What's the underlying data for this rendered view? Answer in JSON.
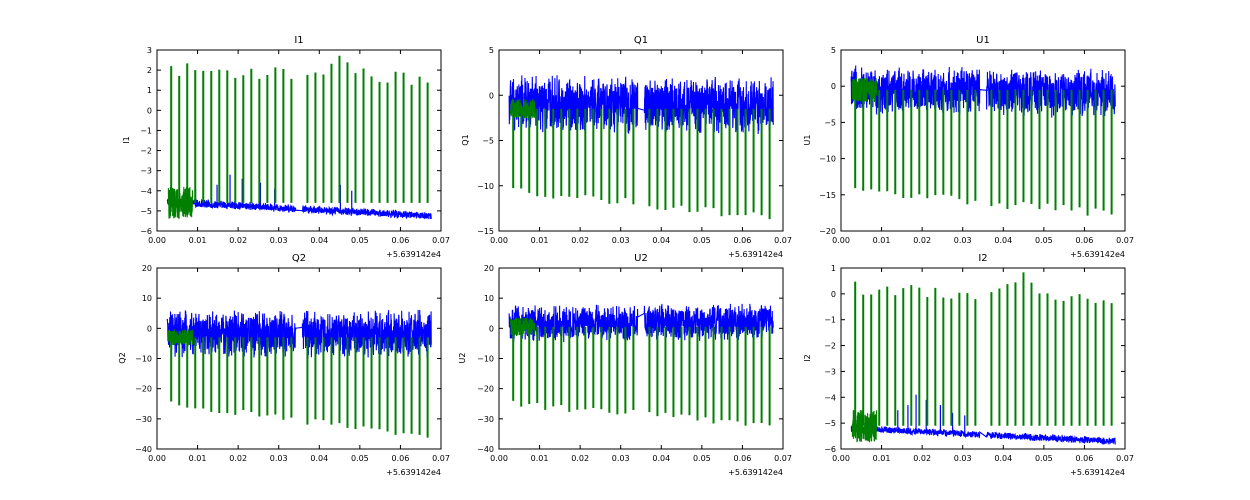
{
  "chart_data": [
    {
      "type": "line",
      "title": "I1",
      "ylabel": "I1",
      "xlim": [
        0.0,
        0.07
      ],
      "ylim": [
        -6,
        3
      ],
      "xticks": [
        "0.00",
        "0.01",
        "0.02",
        "0.03",
        "0.04",
        "0.05",
        "0.06",
        "0.07"
      ],
      "yticks": [
        "3",
        "2",
        "1",
        "0",
        "−1",
        "−2",
        "−3",
        "−4",
        "−5",
        "−6"
      ],
      "x_offset": "+5.639142e4",
      "series": [
        {
          "name": "blue",
          "color": "#0000ff",
          "kind": "band",
          "segments": [
            [
              0.0025,
              0.0342
            ],
            [
              0.0358,
              0.0676
            ]
          ],
          "center_start": -4.55,
          "center_end": -5.25,
          "amplitude": 0.22,
          "spikes": [
            [
              0.0095,
              -3.9
            ],
            [
              0.0148,
              -3.7
            ],
            [
              0.018,
              -3.2
            ],
            [
              0.021,
              -3.4
            ],
            [
              0.0255,
              -3.6
            ],
            [
              0.029,
              -3.9
            ],
            [
              0.0452,
              -3.7
            ],
            [
              0.048,
              -4.0
            ]
          ]
        },
        {
          "name": "green",
          "color": "#007f00",
          "kind": "pulses",
          "x_start": 0.0035,
          "x_end": 0.0667,
          "count": 33,
          "gap": [
            0.0342,
            0.0358
          ],
          "base": -4.6,
          "peak_start": 2.05,
          "peak_end": 1.55,
          "peak_bump": [
            0.045,
            2.55
          ]
        }
      ]
    },
    {
      "type": "line",
      "title": "Q1",
      "ylabel": "Q1",
      "xlim": [
        0.0,
        0.07
      ],
      "ylim": [
        -15,
        5
      ],
      "xticks": [
        "0.00",
        "0.01",
        "0.02",
        "0.03",
        "0.04",
        "0.05",
        "0.06",
        "0.07"
      ],
      "yticks": [
        "5",
        "0",
        "−5",
        "−10",
        "−15"
      ],
      "x_offset": "+5.639142e4",
      "series": [
        {
          "name": "blue",
          "color": "#0000ff",
          "kind": "band",
          "segments": [
            [
              0.0025,
              0.0342
            ],
            [
              0.0358,
              0.0676
            ]
          ],
          "center_start": -1.0,
          "center_end": -1.2,
          "amplitude": 3.4,
          "spikes": []
        },
        {
          "name": "green",
          "color": "#007f00",
          "kind": "pulses",
          "x_start": 0.0035,
          "x_end": 0.0667,
          "count": 33,
          "gap": [
            0.0342,
            0.0358
          ],
          "base": -1.5,
          "peak_start": -10.5,
          "peak_end": -13.5,
          "peak_bump": null
        }
      ]
    },
    {
      "type": "line",
      "title": "U1",
      "ylabel": "U1",
      "xlim": [
        0.0,
        0.07
      ],
      "ylim": [
        -20,
        5
      ],
      "xticks": [
        "0.00",
        "0.01",
        "0.02",
        "0.03",
        "0.04",
        "0.05",
        "0.06",
        "0.07"
      ],
      "yticks": [
        "5",
        "0",
        "−5",
        "−10",
        "−15",
        "−20"
      ],
      "x_offset": "+5.639142e4",
      "series": [
        {
          "name": "blue",
          "color": "#0000ff",
          "kind": "band",
          "segments": [
            [
              0.0025,
              0.0342
            ],
            [
              0.0358,
              0.0676
            ]
          ],
          "center_start": -0.5,
          "center_end": -1.0,
          "amplitude": 3.5,
          "spikes": []
        },
        {
          "name": "green",
          "color": "#007f00",
          "kind": "pulses",
          "x_start": 0.0035,
          "x_end": 0.0667,
          "count": 33,
          "gap": [
            0.0342,
            0.0358
          ],
          "base": -0.5,
          "peak_start": -14.5,
          "peak_end": -17.5,
          "peak_bump": null
        }
      ]
    },
    {
      "type": "line",
      "title": "Q2",
      "ylabel": "Q2",
      "xlim": [
        0.0,
        0.07
      ],
      "ylim": [
        -40,
        20
      ],
      "xticks": [
        "0.00",
        "0.01",
        "0.02",
        "0.03",
        "0.04",
        "0.05",
        "0.06",
        "0.07"
      ],
      "yticks": [
        "20",
        "10",
        "0",
        "−10",
        "−20",
        "−30",
        "−40"
      ],
      "x_offset": "+5.639142e4",
      "series": [
        {
          "name": "blue",
          "color": "#0000ff",
          "kind": "band",
          "segments": [
            [
              0.0025,
              0.0342
            ],
            [
              0.0358,
              0.0676
            ]
          ],
          "center_start": -2.0,
          "center_end": -2.0,
          "amplitude": 8.5,
          "spikes": []
        },
        {
          "name": "green",
          "color": "#007f00",
          "kind": "pulses",
          "x_start": 0.0035,
          "x_end": 0.0667,
          "count": 33,
          "gap": [
            0.0342,
            0.0358
          ],
          "base": -3.0,
          "peak_start": -25.0,
          "peak_end": -36.0,
          "peak_bump": null
        }
      ]
    },
    {
      "type": "line",
      "title": "U2",
      "ylabel": "U2",
      "xlim": [
        0.0,
        0.07
      ],
      "ylim": [
        -40,
        20
      ],
      "xticks": [
        "0.00",
        "0.01",
        "0.02",
        "0.03",
        "0.04",
        "0.05",
        "0.06",
        "0.07"
      ],
      "yticks": [
        "20",
        "10",
        "0",
        "−10",
        "−20",
        "−30",
        "−40"
      ],
      "x_offset": "+5.639142e4",
      "series": [
        {
          "name": "blue",
          "color": "#0000ff",
          "kind": "band",
          "segments": [
            [
              0.0025,
              0.0342
            ],
            [
              0.0358,
              0.0676
            ]
          ],
          "center_start": 1.5,
          "center_end": 2.0,
          "amplitude": 6.5,
          "spikes": []
        },
        {
          "name": "green",
          "color": "#007f00",
          "kind": "pulses",
          "x_start": 0.0035,
          "x_end": 0.0667,
          "count": 33,
          "gap": [
            0.0342,
            0.0358
          ],
          "base": 0.5,
          "peak_start": -25.0,
          "peak_end": -32.0,
          "peak_bump": null
        }
      ]
    },
    {
      "type": "line",
      "title": "I2",
      "ylabel": "I2",
      "xlim": [
        0.0,
        0.07
      ],
      "ylim": [
        -6,
        1
      ],
      "xticks": [
        "0.00",
        "0.01",
        "0.02",
        "0.03",
        "0.04",
        "0.05",
        "0.06",
        "0.07"
      ],
      "yticks": [
        "1",
        "0",
        "−1",
        "−2",
        "−3",
        "−4",
        "−5",
        "−6"
      ],
      "x_offset": "+5.639142e4",
      "series": [
        {
          "name": "blue",
          "color": "#0000ff",
          "kind": "band",
          "segments": [
            [
              0.0025,
              0.0342
            ],
            [
              0.0358,
              0.0676
            ]
          ],
          "center_start": -5.2,
          "center_end": -5.7,
          "amplitude": 0.15,
          "spikes": [
            [
              0.008,
              -4.8
            ],
            [
              0.014,
              -4.5
            ],
            [
              0.0165,
              -4.3
            ],
            [
              0.0185,
              -3.9
            ],
            [
              0.021,
              -4.1
            ],
            [
              0.0245,
              -4.3
            ],
            [
              0.0275,
              -4.6
            ],
            [
              0.0305,
              -4.7
            ]
          ]
        },
        {
          "name": "green",
          "color": "#007f00",
          "kind": "pulses",
          "x_start": 0.0035,
          "x_end": 0.0667,
          "count": 33,
          "gap": [
            0.0342,
            0.0358
          ],
          "base": -5.1,
          "peak_start": 0.25,
          "peak_end": -0.35,
          "peak_bump": [
            0.045,
            0.6
          ]
        }
      ]
    }
  ]
}
